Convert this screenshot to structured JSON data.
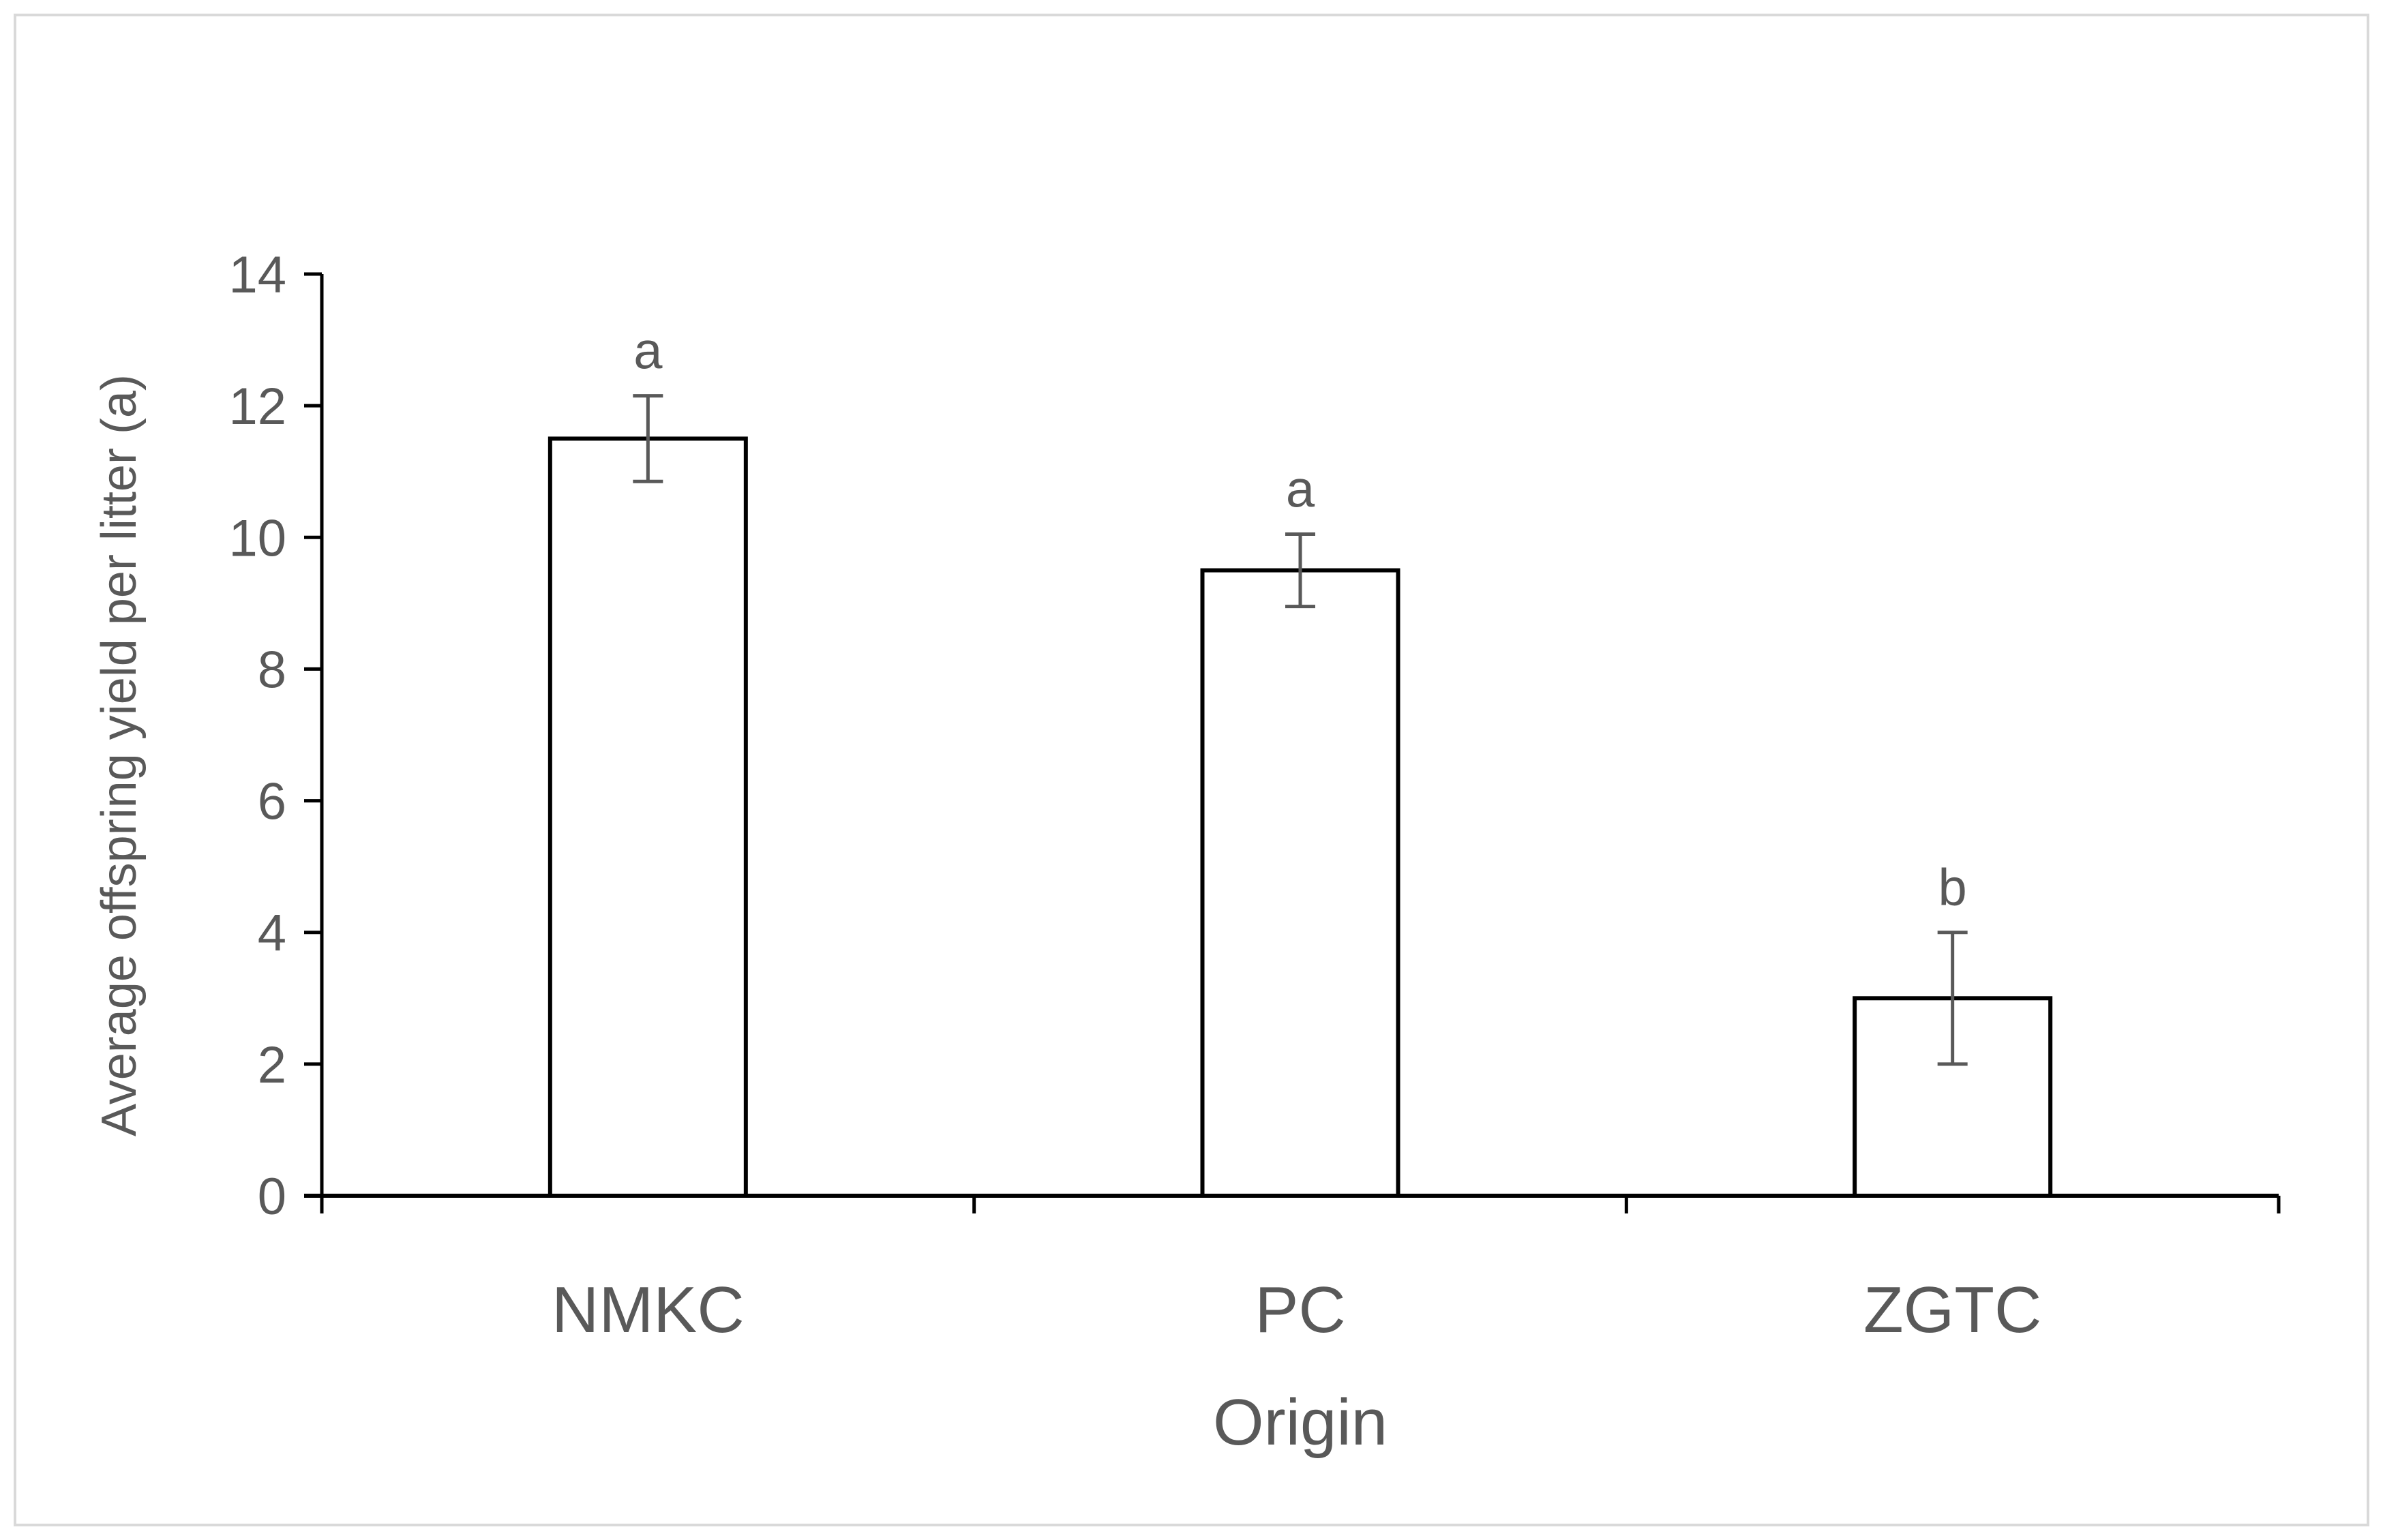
{
  "chart_data": {
    "type": "bar",
    "categories": [
      "NMKC",
      "PC",
      "ZGTC"
    ],
    "values": [
      11.5,
      9.5,
      3.0
    ],
    "errors": [
      0.65,
      0.55,
      1.0
    ],
    "significance_letters": [
      "a",
      "a",
      "b"
    ],
    "xlabel": "Origin",
    "ylabel": "Average offspring yield per litter  (a)",
    "ylim": [
      0,
      14
    ],
    "yticks": [
      0,
      2,
      4,
      6,
      8,
      10,
      12,
      14
    ],
    "grid": false,
    "legend": "none",
    "colors": {
      "bar_fill": "#ffffff",
      "bar_stroke": "#000000",
      "error_bar": "#595959",
      "axis": "#000000",
      "text": "#595959"
    }
  }
}
